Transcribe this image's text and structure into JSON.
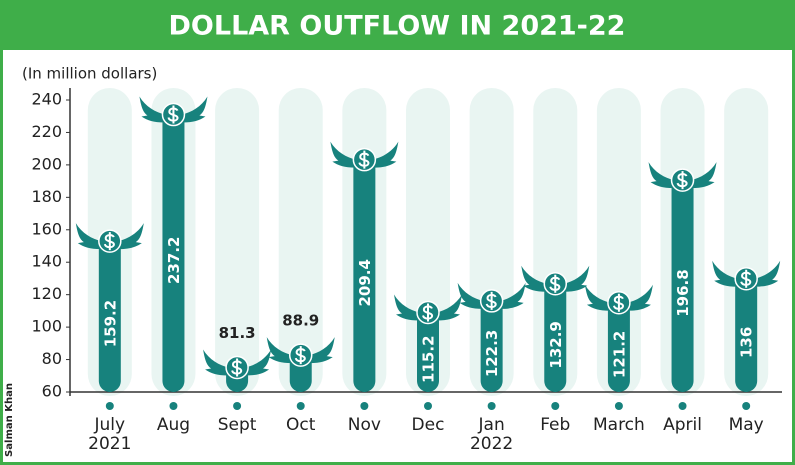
{
  "chart_data": {
    "type": "bar",
    "title": "DOLLAR OUTFLOW IN 2021-22",
    "y_axis_label": "(In million dollars)",
    "credit": "Salman Khan",
    "categories": [
      "July\n2021",
      "Aug",
      "Sept",
      "Oct",
      "Nov",
      "Dec",
      "Jan\n2022",
      "Feb",
      "March",
      "April",
      "May"
    ],
    "values": [
      159.2,
      237.2,
      81.3,
      88.9,
      209.4,
      115.2,
      122.3,
      132.9,
      121.2,
      196.8,
      136
    ],
    "color": "#17827d",
    "ylim": [
      60,
      240
    ],
    "yticks": [
      60,
      80,
      100,
      120,
      140,
      160,
      180,
      200,
      220,
      240
    ],
    "grid": false
  }
}
